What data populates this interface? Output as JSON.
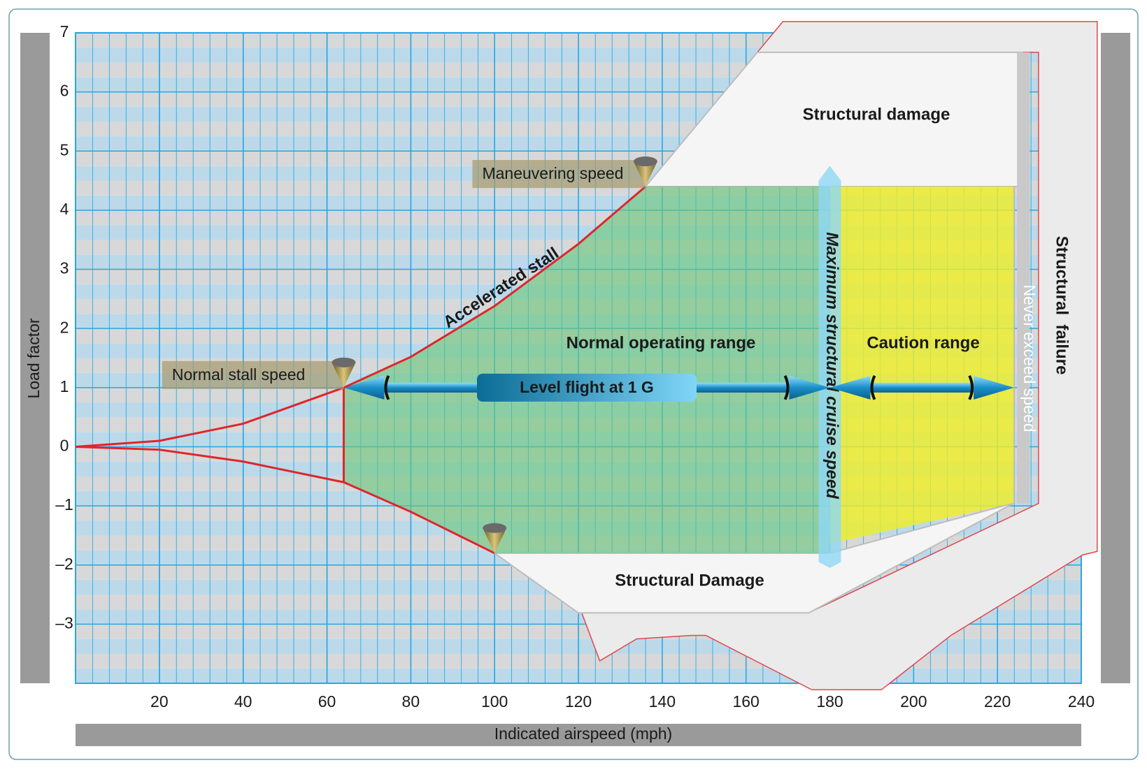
{
  "chart_data": {
    "type": "line",
    "xlabel": "Indicated airspeed (mph)",
    "ylabel": "Load factor",
    "xlim": [
      0,
      240
    ],
    "ylim": [
      -4,
      7
    ],
    "xticks": [
      20,
      40,
      60,
      80,
      100,
      120,
      140,
      160,
      180,
      200,
      220,
      240
    ],
    "yticks": [
      {
        "value": -3,
        "label": "–3"
      },
      {
        "value": -2,
        "label": "–2"
      },
      {
        "value": -1,
        "label": "–1"
      },
      0,
      1,
      2,
      3,
      4,
      5,
      6,
      7
    ],
    "grid": true,
    "series": [
      {
        "name": "Accelerated stall",
        "color": "#e0252b",
        "x": [
          0,
          20,
          40,
          64,
          80,
          100,
          120,
          136
        ],
        "values": [
          0,
          0.1,
          0.39,
          1,
          1.52,
          2.38,
          3.43,
          4.4
        ]
      },
      {
        "color": "#e0252b",
        "x": [
          0,
          20,
          40,
          64,
          80,
          100
        ],
        "values": [
          0,
          -0.05,
          -0.25,
          -0.6,
          -1.1,
          -1.8
        ]
      },
      {
        "color": "#e0252b",
        "x": [
          64,
          64
        ],
        "values": [
          1,
          -0.6
        ]
      }
    ],
    "regions": [
      {
        "label": "Structural  failure",
        "color": "#ebebeb",
        "edge": "#e0474c",
        "x": [
          162.7,
          168.8,
          243.8,
          243.8,
          240.3,
          208.9,
          192.3,
          175.7,
          150.4,
          147,
          133.9,
          125.1,
          120.8,
          174.9,
          229.8,
          229.8
        ],
        "y": [
          6.67,
          7.19,
          7.19,
          -1.77,
          -1.83,
          -3.19,
          -4.11,
          -4.11,
          -3.19,
          -3.19,
          -3.25,
          -3.62,
          -2.81,
          -2.81,
          -0.96,
          6.67
        ]
      },
      {
        "label": "Structural damage",
        "color": "#f5f5f5",
        "x": [
          136,
          162.7,
          226,
          226
        ],
        "y": [
          4.4,
          6.67,
          6.67,
          4.4
        ]
      },
      {
        "label": "Structural Damage",
        "color": "#f5f5f5",
        "x": [
          100,
          180,
          224,
          175,
          120
        ],
        "y": [
          -1.8,
          -1.8,
          -0.95,
          -2.81,
          -2.81
        ]
      },
      {
        "label": "Normal operating range",
        "color": "#6cc67a",
        "x": [
          64,
          80,
          100,
          120,
          136,
          180,
          180,
          100,
          80,
          64
        ],
        "y": [
          1,
          1.52,
          2.38,
          3.43,
          4.4,
          4.4,
          -1.8,
          -1.8,
          -1.1,
          -0.6
        ]
      },
      {
        "label": "Caution range",
        "color": "#eeee2a",
        "x": [
          180,
          224,
          224,
          180
        ],
        "y": [
          4.4,
          4.4,
          -0.95,
          -1.64
        ]
      }
    ],
    "speed_lines": [
      {
        "label": "Maximum structural cruise speed",
        "x": 180
      },
      {
        "label": "Never exceed speed",
        "x": 224
      }
    ],
    "markers": [
      {
        "label": "Maneuvering speed",
        "x": 136,
        "y": 4.4
      },
      {
        "label": "Normal stall speed",
        "x": 64,
        "y": 1
      },
      {
        "x": 100,
        "y": -1.8
      }
    ],
    "level_flight": {
      "label": "Level flight at 1 G",
      "y": 1,
      "x": [
        64,
        180,
        224
      ]
    }
  }
}
